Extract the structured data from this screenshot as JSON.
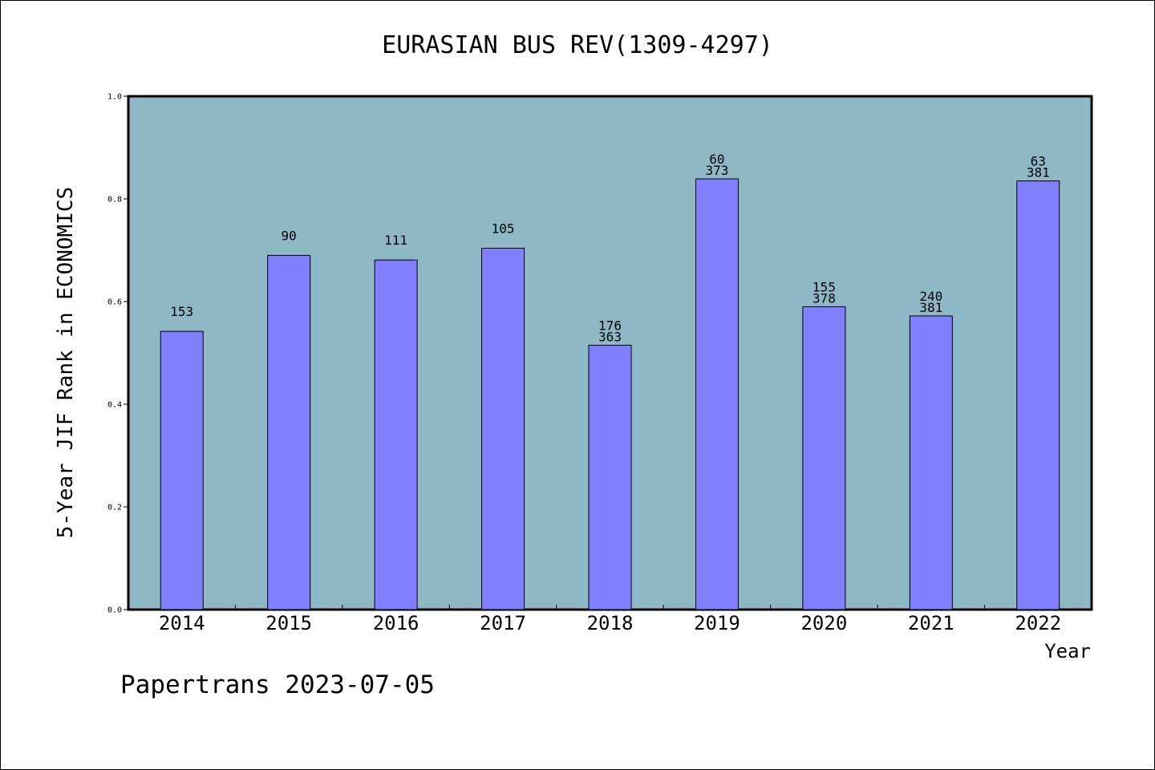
{
  "chart_data": {
    "type": "bar",
    "title": "EURASIAN BUS REV(1309-4297)",
    "xlabel": "Year",
    "ylabel": "5-Year JIF Rank in ECONOMICS",
    "categories": [
      "2014",
      "2015",
      "2016",
      "2017",
      "2018",
      "2019",
      "2020",
      "2021",
      "2022"
    ],
    "values": [
      0.542,
      0.69,
      0.681,
      0.704,
      0.515,
      0.839,
      0.59,
      0.572,
      0.835
    ],
    "bar_labels": [
      [
        "153"
      ],
      [
        "90"
      ],
      [
        "111"
      ],
      [
        "105"
      ],
      [
        "176",
        "363"
      ],
      [
        "60",
        "373"
      ],
      [
        "155",
        "378"
      ],
      [
        "240",
        "381"
      ],
      [
        "63",
        "381"
      ]
    ],
    "ylim": [
      0,
      1.0
    ],
    "yticks": [
      "0.0",
      "0.2",
      "0.4",
      "0.6",
      "0.8",
      "1.0"
    ],
    "grid": false,
    "colors": {
      "plot_background": "#8fb8c6",
      "bar_fill": "#8080ff",
      "bar_stroke": "#000000"
    }
  },
  "footer": "Papertrans 2023-07-05"
}
